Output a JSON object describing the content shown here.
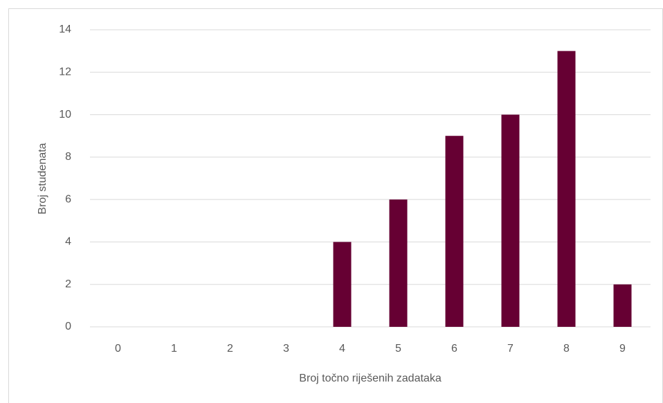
{
  "chart_data": {
    "type": "bar",
    "xlabel": "Broj točno riješenih zadataka",
    "ylabel": "Broj studenata",
    "categories": [
      "0",
      "1",
      "2",
      "3",
      "4",
      "5",
      "6",
      "7",
      "8",
      "9"
    ],
    "values": [
      0,
      0,
      0,
      0,
      4,
      6,
      9,
      10,
      13,
      2
    ],
    "color": "#660033",
    "ylim": [
      0,
      14
    ],
    "yticks": [
      0,
      2,
      4,
      6,
      8,
      10,
      12,
      14
    ],
    "grid": true
  }
}
